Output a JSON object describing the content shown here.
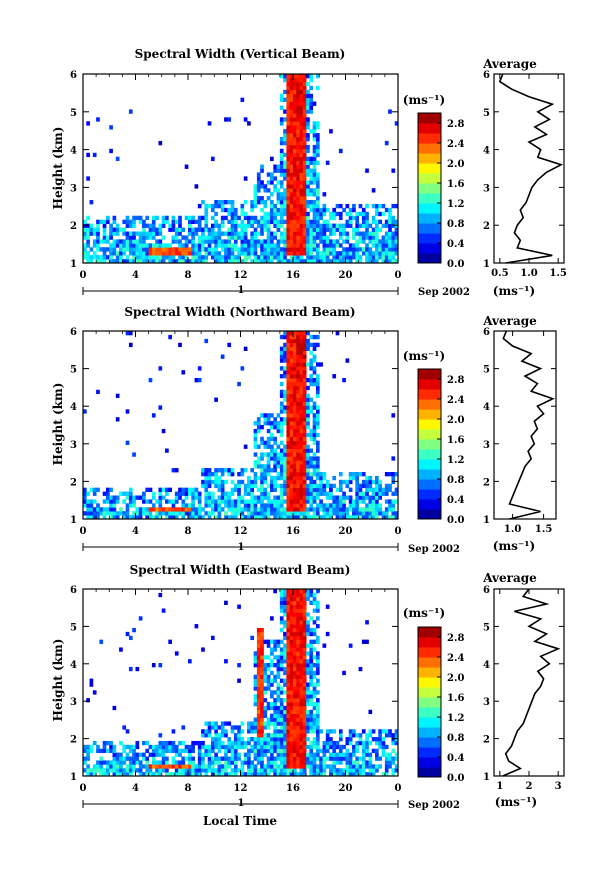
{
  "figure": {
    "xlabel": "Local Time",
    "date_label": "Sep 2002",
    "day_label": "1"
  },
  "chart_data": [
    {
      "type": "heatmap",
      "title": "Spectral Width (Vertical Beam)",
      "ylabel": "Height (km)",
      "xlim": [
        0,
        24
      ],
      "ylim": [
        1,
        6
      ],
      "xticks": [
        "0",
        "4",
        "8",
        "12",
        "16",
        "20",
        "0"
      ],
      "yticks": [
        "1",
        "2",
        "3",
        "4",
        "5",
        "6"
      ],
      "colorbar": {
        "label": "(ms⁻¹)",
        "ticks": [
          "0.0",
          "0.4",
          "0.8",
          "1.2",
          "1.6",
          "2.0",
          "2.4",
          "2.8"
        ],
        "range": [
          0.0,
          3.0
        ]
      },
      "echo_columns": [
        {
          "start": 0,
          "end": 9,
          "top": 2.3
        },
        {
          "start": 9,
          "end": 13,
          "top": 2.7
        },
        {
          "start": 13,
          "end": 15,
          "top": 3.6
        },
        {
          "start": 15,
          "end": 18,
          "top": 6.0
        },
        {
          "start": 18,
          "end": 24,
          "top": 2.6
        }
      ],
      "high_width_features": [
        {
          "start": 15.5,
          "end": 17.0,
          "base": 1.2,
          "top": 6.0,
          "value": 2.8
        },
        {
          "start": 16.2,
          "end": 16.8,
          "base": 5.0,
          "top": 6.0,
          "value": 2.9
        },
        {
          "start": 5.0,
          "end": 8.3,
          "base": 1.25,
          "top": 1.4,
          "value": 2.6
        }
      ],
      "average_profile": {
        "title": "Average",
        "xlabel": "(ms⁻¹)",
        "xlim": [
          0.4,
          1.6
        ],
        "xticks": [
          "0.5",
          "1.0",
          "1.5"
        ],
        "height": [
          1.0,
          1.2,
          1.4,
          1.6,
          1.8,
          2.0,
          2.2,
          2.4,
          2.6,
          2.8,
          3.0,
          3.2,
          3.4,
          3.6,
          3.8,
          4.0,
          4.2,
          4.4,
          4.6,
          4.8,
          5.0,
          5.2,
          5.4,
          5.6,
          5.8,
          6.0
        ],
        "value": [
          0.6,
          1.4,
          0.8,
          0.85,
          0.75,
          0.8,
          0.9,
          0.85,
          0.95,
          1.0,
          1.05,
          1.15,
          1.3,
          1.55,
          1.15,
          1.2,
          1.0,
          1.3,
          1.1,
          1.35,
          1.15,
          1.4,
          1.0,
          0.7,
          0.5,
          0.55
        ]
      }
    },
    {
      "type": "heatmap",
      "title": "Spectral Width (Northward Beam)",
      "ylabel": "Height (km)",
      "xlim": [
        0,
        24
      ],
      "ylim": [
        1,
        6
      ],
      "xticks": [
        "0",
        "4",
        "8",
        "12",
        "16",
        "20",
        "0"
      ],
      "yticks": [
        "1",
        "2",
        "3",
        "4",
        "5",
        "6"
      ],
      "colorbar": {
        "label": "(ms⁻¹)",
        "ticks": [
          "0.0",
          "0.4",
          "0.8",
          "1.2",
          "1.6",
          "2.0",
          "2.4",
          "2.8"
        ],
        "range": [
          0.0,
          3.0
        ]
      },
      "echo_columns": [
        {
          "start": 0,
          "end": 9,
          "top": 1.8
        },
        {
          "start": 9,
          "end": 13,
          "top": 2.4
        },
        {
          "start": 13,
          "end": 15,
          "top": 3.8
        },
        {
          "start": 15,
          "end": 18,
          "top": 6.0
        },
        {
          "start": 18,
          "end": 24,
          "top": 2.2
        }
      ],
      "high_width_features": [
        {
          "start": 15.6,
          "end": 17.0,
          "base": 1.2,
          "top": 6.0,
          "value": 2.8
        },
        {
          "start": 16.3,
          "end": 17.0,
          "base": 4.8,
          "top": 6.0,
          "value": 2.9
        },
        {
          "start": 5.0,
          "end": 8.3,
          "base": 1.2,
          "top": 1.35,
          "value": 2.6
        }
      ],
      "average_profile": {
        "title": "Average",
        "xlabel": "(ms⁻¹)",
        "xlim": [
          0.7,
          1.7
        ],
        "xticks": [
          "1.0",
          "1.5"
        ],
        "height": [
          1.0,
          1.2,
          1.4,
          1.6,
          1.8,
          2.0,
          2.2,
          2.4,
          2.6,
          2.8,
          3.0,
          3.2,
          3.4,
          3.6,
          3.8,
          4.0,
          4.2,
          4.4,
          4.6,
          4.8,
          5.0,
          5.2,
          5.4,
          5.6,
          5.8,
          6.0
        ],
        "value": [
          0.95,
          1.45,
          0.95,
          1.0,
          1.05,
          1.1,
          1.15,
          1.2,
          1.3,
          1.25,
          1.35,
          1.3,
          1.4,
          1.35,
          1.5,
          1.4,
          1.65,
          1.3,
          1.4,
          1.2,
          1.45,
          1.15,
          1.3,
          1.0,
          0.85,
          0.9
        ]
      }
    },
    {
      "type": "heatmap",
      "title": "Spectral Width (Eastward Beam)",
      "ylabel": "Height (km)",
      "xlim": [
        0,
        24
      ],
      "ylim": [
        1,
        6
      ],
      "xticks": [
        "0",
        "4",
        "8",
        "12",
        "16",
        "20",
        "0"
      ],
      "yticks": [
        "1",
        "2",
        "3",
        "4",
        "5",
        "6"
      ],
      "colorbar": {
        "label": "(ms⁻¹)",
        "ticks": [
          "0.0",
          "0.4",
          "0.8",
          "1.2",
          "1.6",
          "2.0",
          "2.4",
          "2.8"
        ],
        "range": [
          0.0,
          3.0
        ]
      },
      "echo_columns": [
        {
          "start": 0,
          "end": 9,
          "top": 1.9
        },
        {
          "start": 9,
          "end": 13,
          "top": 2.5
        },
        {
          "start": 13,
          "end": 15,
          "top": 4.8
        },
        {
          "start": 15,
          "end": 18,
          "top": 6.0
        },
        {
          "start": 18,
          "end": 24,
          "top": 2.3
        }
      ],
      "high_width_features": [
        {
          "start": 15.5,
          "end": 17.1,
          "base": 1.2,
          "top": 6.0,
          "value": 2.8
        },
        {
          "start": 13.2,
          "end": 13.8,
          "base": 2.0,
          "top": 5.0,
          "value": 2.7
        },
        {
          "start": 5.0,
          "end": 8.3,
          "base": 1.2,
          "top": 1.35,
          "value": 2.6
        }
      ],
      "average_profile": {
        "title": "Average",
        "xlabel": "(ms⁻¹)",
        "xlim": [
          0.8,
          3.2
        ],
        "xticks": [
          "1",
          "2",
          "3"
        ],
        "height": [
          1.0,
          1.2,
          1.4,
          1.6,
          1.8,
          2.0,
          2.2,
          2.4,
          2.6,
          2.8,
          3.0,
          3.2,
          3.4,
          3.6,
          3.8,
          4.0,
          4.2,
          4.4,
          4.6,
          4.8,
          5.0,
          5.2,
          5.4,
          5.6,
          5.8,
          6.0
        ],
        "value": [
          1.1,
          1.7,
          1.3,
          1.2,
          1.4,
          1.5,
          1.6,
          1.8,
          1.9,
          2.0,
          2.1,
          2.2,
          2.4,
          2.5,
          2.3,
          2.7,
          2.4,
          3.0,
          2.2,
          2.6,
          2.0,
          2.4,
          1.5,
          2.6,
          1.8,
          2.0
        ]
      }
    }
  ]
}
